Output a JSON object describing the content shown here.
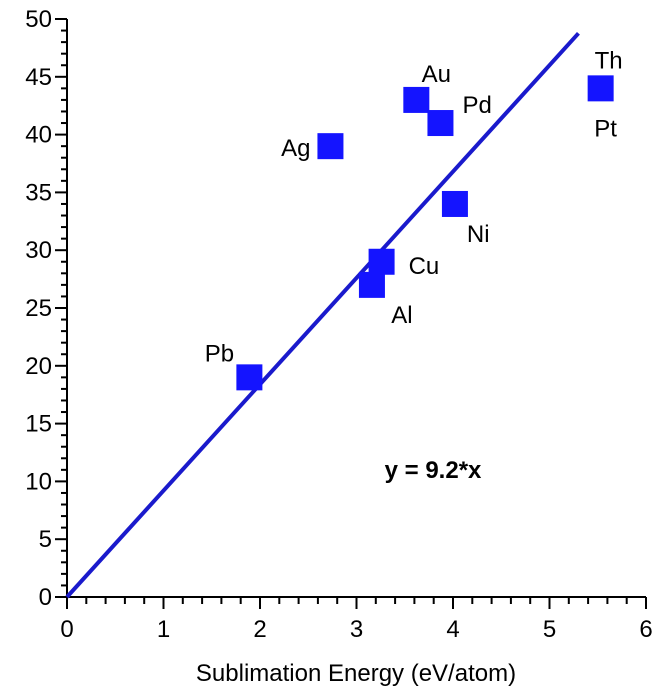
{
  "chart_data": {
    "type": "scatter",
    "title": "",
    "xlabel": "Sublimation Energy (eV/atom)",
    "ylabel": "",
    "xlim": [
      0,
      6
    ],
    "ylim": [
      0,
      50
    ],
    "x_ticks": [
      "0",
      "1",
      "2",
      "3",
      "4",
      "5",
      "6"
    ],
    "y_ticks": [
      "0",
      "5",
      "10",
      "15",
      "20",
      "25",
      "30",
      "35",
      "40",
      "45",
      "50"
    ],
    "grid": false,
    "legend": "none",
    "marker_color": "#1414ff",
    "line_color": "#1a1acc",
    "points": [
      {
        "label": "Pb",
        "x": 1.89,
        "y": 19.0
      },
      {
        "label": "Al",
        "x": 3.16,
        "y": 27.0
      },
      {
        "label": "Cu",
        "x": 3.26,
        "y": 29.0
      },
      {
        "label": "Ag",
        "x": 2.73,
        "y": 39.0
      },
      {
        "label": "Au",
        "x": 3.62,
        "y": 43.0
      },
      {
        "label": "Pd",
        "x": 3.87,
        "y": 41.0
      },
      {
        "label": "Ni",
        "x": 4.02,
        "y": 34.0
      },
      {
        "label": "Pt",
        "x": 5.53,
        "y": 44.0
      }
    ],
    "extra_label": "Th",
    "fit": {
      "slope": 9.2,
      "x_range": [
        0,
        5.3
      ],
      "equation": "y = 9.2*x"
    }
  }
}
